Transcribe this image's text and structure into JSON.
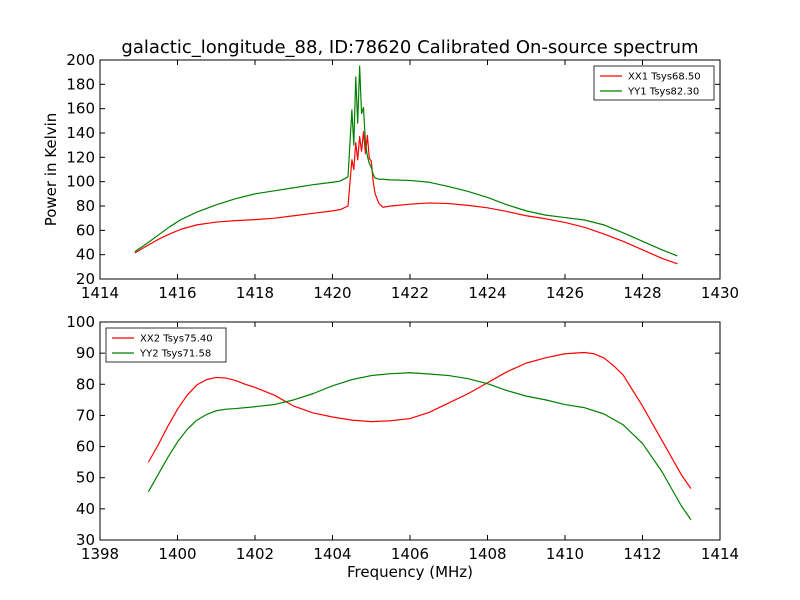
{
  "chart_data": [
    {
      "type": "line",
      "title": "galactic_longitude_88, ID:78620 Calibrated On-source spectrum",
      "xlabel": "",
      "ylabel": "Power in Kelvin",
      "xlim": [
        1414,
        1430
      ],
      "ylim": [
        20,
        200
      ],
      "xticks": [
        1414,
        1416,
        1418,
        1420,
        1422,
        1424,
        1426,
        1428,
        1430
      ],
      "yticks": [
        20,
        40,
        60,
        80,
        100,
        120,
        140,
        160,
        180,
        200
      ],
      "legend": "top-right",
      "series": [
        {
          "name": "XX1 Tsys68.50",
          "color": "#ff0000",
          "x": [
            1414.9,
            1415.2,
            1415.5,
            1415.8,
            1416.1,
            1416.5,
            1417.0,
            1417.5,
            1418.0,
            1418.5,
            1419.0,
            1419.5,
            1420.0,
            1420.2,
            1420.4,
            1420.5,
            1420.55,
            1420.6,
            1420.65,
            1420.7,
            1420.75,
            1420.8,
            1420.85,
            1420.9,
            1420.95,
            1421.0,
            1421.05,
            1421.1,
            1421.2,
            1421.3,
            1421.5,
            1422.0,
            1422.5,
            1423.0,
            1423.5,
            1424.0,
            1424.5,
            1425.0,
            1425.5,
            1426.0,
            1426.5,
            1427.0,
            1427.5,
            1428.0,
            1428.5,
            1428.9
          ],
          "y": [
            41.5,
            47,
            52.5,
            57,
            61,
            64.5,
            66.8,
            68,
            68.8,
            70,
            72,
            74,
            76,
            77,
            80,
            118,
            110,
            132,
            118,
            137,
            125,
            141,
            123,
            138,
            119,
            117,
            100,
            90,
            82,
            79,
            80,
            81.5,
            82.5,
            82,
            80.5,
            78.5,
            75.5,
            72,
            69.5,
            66.5,
            62.5,
            57,
            51,
            44,
            37,
            32.5
          ]
        },
        {
          "name": "YY1 Tsys82.30",
          "color": "#008000",
          "x": [
            1414.9,
            1415.2,
            1415.5,
            1415.8,
            1416.1,
            1416.5,
            1417.0,
            1417.5,
            1418.0,
            1418.5,
            1419.0,
            1419.5,
            1420.0,
            1420.2,
            1420.4,
            1420.5,
            1420.55,
            1420.6,
            1420.65,
            1420.7,
            1420.75,
            1420.8,
            1420.85,
            1420.9,
            1420.95,
            1421.0,
            1421.05,
            1421.1,
            1421.2,
            1421.3,
            1421.5,
            1422.0,
            1422.5,
            1423.0,
            1423.5,
            1424.0,
            1424.5,
            1425.0,
            1425.5,
            1426.0,
            1426.5,
            1427.0,
            1427.5,
            1428.0,
            1428.5,
            1428.9
          ],
          "y": [
            42.5,
            49,
            56,
            63,
            69,
            75,
            81,
            86,
            90,
            92.5,
            95,
            97.5,
            99.5,
            100.5,
            104,
            159,
            130,
            186,
            148,
            195,
            156,
            161,
            132,
            121,
            115,
            112,
            106,
            103,
            102,
            102,
            101.5,
            101,
            99.5,
            96,
            92,
            87,
            81,
            76,
            72.5,
            70.5,
            68.5,
            64.5,
            58,
            51,
            44,
            39
          ]
        }
      ]
    },
    {
      "type": "line",
      "title": "",
      "xlabel": "Frequency (MHz)",
      "ylabel": "",
      "xlim": [
        1398,
        1414
      ],
      "ylim": [
        30,
        100
      ],
      "xticks": [
        1398,
        1400,
        1402,
        1404,
        1406,
        1408,
        1410,
        1412,
        1414
      ],
      "yticks": [
        30,
        40,
        50,
        60,
        70,
        80,
        90,
        100
      ],
      "legend": "top-left",
      "series": [
        {
          "name": "XX2 Tsys75.40",
          "color": "#ff0000",
          "x": [
            1399.25,
            1399.5,
            1399.75,
            1400.0,
            1400.25,
            1400.5,
            1400.75,
            1401.0,
            1401.25,
            1401.5,
            1401.75,
            1402.0,
            1402.5,
            1403.0,
            1403.5,
            1404.0,
            1404.5,
            1405.0,
            1405.5,
            1406.0,
            1406.5,
            1407.0,
            1407.5,
            1408.0,
            1408.5,
            1409.0,
            1409.5,
            1410.0,
            1410.5,
            1410.75,
            1411.0,
            1411.25,
            1411.5,
            1412.0,
            1412.5,
            1413.0,
            1413.25
          ],
          "y": [
            55,
            60.5,
            66.5,
            72,
            76.5,
            79.8,
            81.5,
            82.2,
            82,
            81.2,
            80,
            79,
            76.5,
            73,
            70.8,
            69.5,
            68.5,
            68,
            68.3,
            69,
            71,
            74,
            77,
            80.5,
            84,
            86.8,
            88.5,
            89.8,
            90.2,
            89.8,
            88.5,
            86,
            83,
            73,
            62,
            51,
            46.5
          ]
        },
        {
          "name": "YY2 Tsys71.58",
          "color": "#008000",
          "x": [
            1399.25,
            1399.5,
            1399.75,
            1400.0,
            1400.25,
            1400.5,
            1400.75,
            1401.0,
            1401.25,
            1401.5,
            1402.0,
            1402.5,
            1403.0,
            1403.5,
            1404.0,
            1404.5,
            1405.0,
            1405.5,
            1406.0,
            1406.5,
            1407.0,
            1407.5,
            1408.0,
            1408.5,
            1409.0,
            1409.5,
            1410.0,
            1410.5,
            1411.0,
            1411.5,
            1412.0,
            1412.5,
            1413.0,
            1413.25
          ],
          "y": [
            45.5,
            51,
            56.5,
            61.5,
            65.5,
            68.5,
            70.3,
            71.5,
            72,
            72.2,
            72.8,
            73.5,
            75,
            77,
            79.5,
            81.5,
            82.8,
            83.4,
            83.7,
            83.3,
            82.8,
            81.8,
            80.2,
            78,
            76.2,
            75,
            73.5,
            72.5,
            70.5,
            67,
            61,
            52,
            41,
            36.5
          ]
        }
      ]
    }
  ]
}
